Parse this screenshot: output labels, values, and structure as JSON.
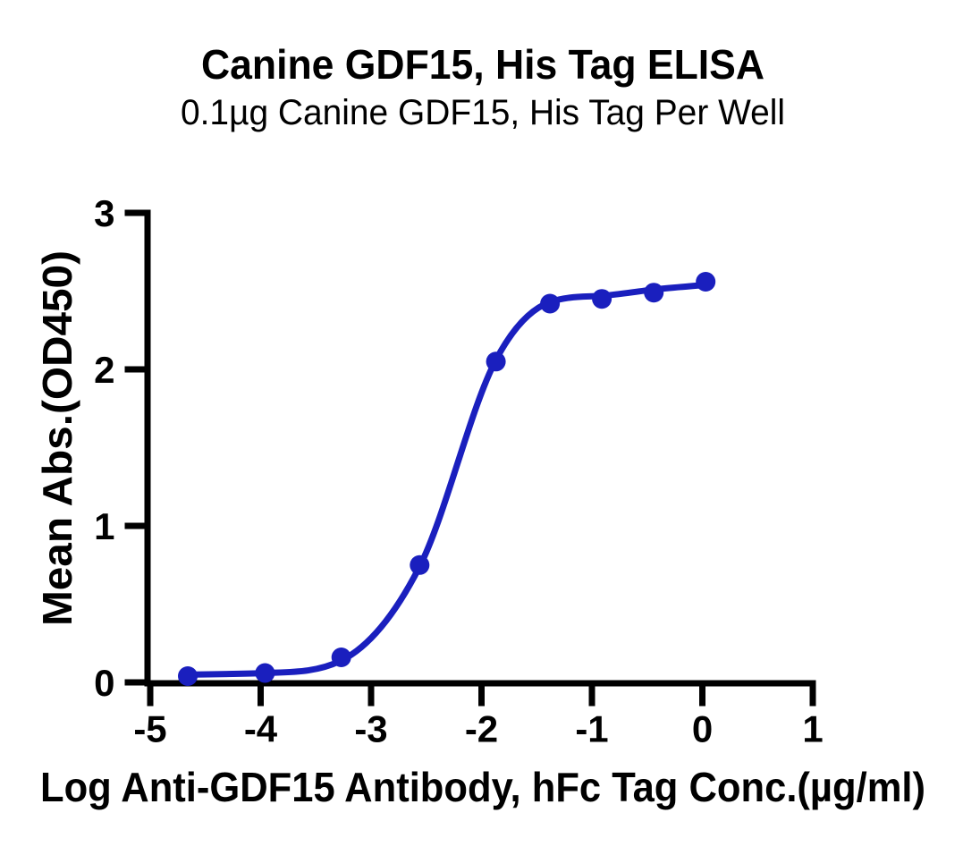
{
  "chart_data": {
    "type": "scatter",
    "title": "Canine GDF15, His Tag ELISA",
    "subtitle": "0.1µg Canine GDF15, His Tag Per Well",
    "xlabel": "Log Anti-GDF15 Antibody, hFc Tag Conc.(µg/ml)",
    "ylabel": "Mean Abs.(OD450)",
    "xlim": [
      -5,
      1
    ],
    "ylim": [
      0,
      3
    ],
    "x_ticks": [
      -5,
      -4,
      -3,
      -2,
      -1,
      0,
      1
    ],
    "y_ticks": [
      0,
      1,
      2,
      3
    ],
    "grid": false,
    "legend": "none",
    "axis_color": "#000000",
    "series": [
      {
        "name": "Anti-GDF15 Antibody, hFc Tag",
        "marker": "circle",
        "color": "#1a1fbe",
        "x": [
          -4.66,
          -3.96,
          -3.27,
          -2.56,
          -1.87,
          -1.38,
          -0.91,
          -0.44,
          0.03
        ],
        "y": [
          0.04,
          0.06,
          0.16,
          0.75,
          2.05,
          2.42,
          2.45,
          2.49,
          2.56
        ]
      }
    ],
    "fit_curve": {
      "type": "4PL-sigmoid",
      "color": "#1a1fbe",
      "x": [
        -4.66,
        -3.96,
        -3.27,
        -2.56,
        -1.87,
        -1.38,
        -0.91,
        -0.44,
        0.03
      ],
      "y": [
        0.05,
        0.06,
        0.14,
        0.74,
        2.06,
        2.43,
        2.47,
        2.51,
        2.54
      ]
    }
  }
}
